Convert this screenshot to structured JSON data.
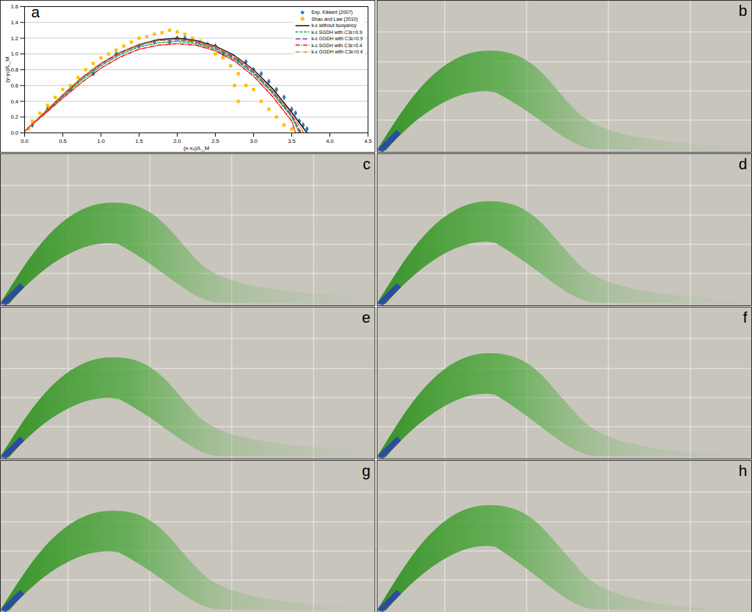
{
  "chart_data": {
    "type": "line",
    "panel": "a",
    "x_label": "(x-x₀)/L_M",
    "y_label": "(y-y₀)/L_M",
    "xlim": [
      0,
      4.5
    ],
    "xticks": [
      0,
      0.5,
      1,
      1.5,
      2,
      2.5,
      3,
      3.5,
      4,
      4.5
    ],
    "ylim": [
      0,
      1.6
    ],
    "yticks": [
      0,
      0.2,
      0.4,
      0.6,
      0.8,
      1,
      1.2,
      1.4,
      1.6
    ],
    "grid": "y",
    "legend": "top-right",
    "series": [
      {
        "name": "Exp. Kikkert (2007)",
        "type": "scatter",
        "marker": "diamond",
        "color": "#2e75b6",
        "x": [
          0.1,
          0.3,
          0.6,
          0.9,
          1.2,
          1.5,
          1.7,
          1.9,
          2.0,
          2.1,
          2.2,
          2.3,
          2.4,
          2.5,
          2.6,
          2.7,
          2.8,
          2.9,
          3.0,
          3.1,
          3.2,
          3.3,
          3.4,
          3.5,
          3.55,
          3.6,
          3.65,
          3.7
        ],
        "values": [
          0.1,
          0.3,
          0.55,
          0.75,
          1.0,
          1.1,
          1.15,
          1.15,
          1.2,
          1.2,
          1.18,
          1.15,
          1.12,
          1.1,
          1.0,
          0.98,
          0.92,
          0.9,
          0.8,
          0.75,
          0.65,
          0.55,
          0.45,
          0.3,
          0.25,
          0.15,
          0.1,
          0.05
        ]
      },
      {
        "name": "Shao and Law (2010)",
        "type": "scatter",
        "marker": "square",
        "color": "#ffc000",
        "x": [
          0.05,
          0.1,
          0.2,
          0.3,
          0.4,
          0.5,
          0.6,
          0.7,
          0.8,
          0.9,
          1.0,
          1.1,
          1.2,
          1.3,
          1.4,
          1.5,
          1.6,
          1.7,
          1.8,
          1.9,
          2.0,
          2.1,
          2.2,
          2.3,
          2.4,
          2.5,
          2.6,
          2.7,
          2.75,
          2.8,
          2.8,
          2.9,
          3.0,
          3.1,
          3.2,
          3.3,
          3.4,
          3.5,
          3.6
        ],
        "values": [
          0.05,
          0.15,
          0.25,
          0.35,
          0.45,
          0.55,
          0.6,
          0.7,
          0.8,
          0.88,
          0.95,
          1.0,
          1.05,
          1.1,
          1.15,
          1.2,
          1.22,
          1.25,
          1.27,
          1.3,
          1.28,
          1.25,
          1.2,
          1.15,
          1.1,
          1.0,
          0.95,
          0.85,
          0.6,
          0.75,
          0.4,
          0.6,
          0.55,
          0.4,
          0.3,
          0.2,
          0.1,
          0.05,
          0.02
        ]
      },
      {
        "name": "k-ε without buoyancy",
        "type": "line",
        "line_style": "solid",
        "color": "#000000",
        "x": [
          0,
          0.25,
          0.5,
          0.75,
          1,
          1.25,
          1.5,
          1.75,
          2,
          2.25,
          2.5,
          2.75,
          3,
          3.25,
          3.5,
          3.7
        ],
        "values": [
          0.02,
          0.25,
          0.48,
          0.7,
          0.88,
          1.02,
          1.12,
          1.18,
          1.2,
          1.17,
          1.1,
          0.98,
          0.8,
          0.56,
          0.26,
          0
        ]
      },
      {
        "name": "k-ε SGDH with C3ε=0.9",
        "type": "line",
        "line_style": "dashed",
        "color": "#00b050",
        "x": [
          0,
          0.25,
          0.5,
          0.75,
          1,
          1.25,
          1.5,
          1.75,
          2,
          2.25,
          2.5,
          2.75,
          3,
          3.25,
          3.5,
          3.6
        ],
        "values": [
          0.02,
          0.24,
          0.46,
          0.67,
          0.85,
          0.99,
          1.09,
          1.14,
          1.16,
          1.13,
          1.06,
          0.93,
          0.75,
          0.5,
          0.2,
          0
        ]
      },
      {
        "name": "k-ε GGDH with C3ε=0.9",
        "type": "line",
        "line_style": "longdash",
        "color": "#7030a0",
        "x": [
          0,
          0.25,
          0.5,
          0.75,
          1,
          1.25,
          1.5,
          1.75,
          2,
          2.25,
          2.5,
          2.75,
          3,
          3.25,
          3.5,
          3.62
        ],
        "values": [
          0.02,
          0.25,
          0.47,
          0.69,
          0.87,
          1.01,
          1.11,
          1.17,
          1.18,
          1.15,
          1.08,
          0.95,
          0.77,
          0.52,
          0.22,
          0
        ]
      },
      {
        "name": "k-ε SGDH with C3ε=0.4",
        "type": "line",
        "line_style": "dashdot",
        "color": "#ff0000",
        "x": [
          0,
          0.25,
          0.5,
          0.75,
          1,
          1.25,
          1.5,
          1.75,
          2,
          2.25,
          2.5,
          2.75,
          3,
          3.25,
          3.5,
          3.55
        ],
        "values": [
          0.02,
          0.23,
          0.44,
          0.64,
          0.82,
          0.96,
          1.06,
          1.11,
          1.13,
          1.11,
          1.04,
          0.91,
          0.72,
          0.46,
          0.15,
          0
        ]
      },
      {
        "name": "k-ε GGDH with C3ε=0.4",
        "type": "line",
        "line_style": "dashdot",
        "color": "#ed7d31",
        "x": [
          0,
          0.25,
          0.5,
          0.75,
          1,
          1.25,
          1.5,
          1.75,
          2,
          2.25,
          2.5,
          2.75,
          3,
          3.25,
          3.5,
          3.66
        ],
        "values": [
          0.02,
          0.25,
          0.48,
          0.7,
          0.88,
          1.02,
          1.12,
          1.17,
          1.19,
          1.16,
          1.09,
          0.97,
          0.79,
          0.54,
          0.24,
          0
        ]
      }
    ]
  },
  "images": [
    {
      "panel": "b"
    },
    {
      "panel": "c"
    },
    {
      "panel": "d"
    },
    {
      "panel": "e"
    },
    {
      "panel": "f"
    },
    {
      "panel": "g"
    },
    {
      "panel": "h"
    }
  ]
}
